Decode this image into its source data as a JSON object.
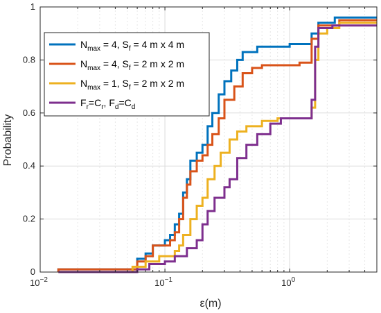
{
  "chart_data": {
    "type": "line",
    "step": true,
    "xscale": "log",
    "xlim": [
      0.01,
      5
    ],
    "ylim": [
      0,
      1
    ],
    "xlabel": "ε(m)",
    "ylabel": "Probability",
    "x_ticks": [
      {
        "value": 0.01,
        "base": "10",
        "exp": "−2"
      },
      {
        "value": 0.1,
        "base": "10",
        "exp": "−1"
      },
      {
        "value": 1,
        "base": "10",
        "exp": "0"
      }
    ],
    "y_ticks": [
      0,
      0.2,
      0.4,
      0.6,
      0.8,
      1
    ],
    "y_tick_labels": [
      "0",
      "0.2",
      "0.4",
      "0.6",
      "0.8",
      "1"
    ],
    "grid": true,
    "legend": "top-left",
    "series": [
      {
        "color": "#0072BD",
        "legend_parts": [
          {
            "t": "N"
          },
          {
            "t": "max",
            "sub": true
          },
          {
            "t": " = 4, S"
          },
          {
            "t": "f",
            "sub": true
          },
          {
            "t": " = 4 m x 4 m"
          }
        ],
        "points": [
          [
            0.014,
            0.0
          ],
          [
            0.014,
            0.01
          ],
          [
            0.06,
            0.01
          ],
          [
            0.06,
            0.05
          ],
          [
            0.07,
            0.05
          ],
          [
            0.07,
            0.07
          ],
          [
            0.08,
            0.07
          ],
          [
            0.08,
            0.1
          ],
          [
            0.1,
            0.1
          ],
          [
            0.1,
            0.12
          ],
          [
            0.11,
            0.12
          ],
          [
            0.11,
            0.14
          ],
          [
            0.12,
            0.14
          ],
          [
            0.12,
            0.18
          ],
          [
            0.13,
            0.18
          ],
          [
            0.13,
            0.22
          ],
          [
            0.14,
            0.22
          ],
          [
            0.14,
            0.3
          ],
          [
            0.15,
            0.3
          ],
          [
            0.15,
            0.35
          ],
          [
            0.16,
            0.35
          ],
          [
            0.16,
            0.42
          ],
          [
            0.18,
            0.42
          ],
          [
            0.18,
            0.45
          ],
          [
            0.2,
            0.45
          ],
          [
            0.2,
            0.48
          ],
          [
            0.22,
            0.48
          ],
          [
            0.22,
            0.55
          ],
          [
            0.24,
            0.55
          ],
          [
            0.24,
            0.6
          ],
          [
            0.27,
            0.6
          ],
          [
            0.27,
            0.67
          ],
          [
            0.3,
            0.67
          ],
          [
            0.3,
            0.72
          ],
          [
            0.34,
            0.72
          ],
          [
            0.34,
            0.76
          ],
          [
            0.38,
            0.76
          ],
          [
            0.38,
            0.8
          ],
          [
            0.42,
            0.8
          ],
          [
            0.42,
            0.83
          ],
          [
            0.55,
            0.83
          ],
          [
            0.55,
            0.85
          ],
          [
            1.0,
            0.85
          ],
          [
            1.0,
            0.86
          ],
          [
            1.5,
            0.86
          ],
          [
            1.5,
            0.9
          ],
          [
            1.7,
            0.9
          ],
          [
            1.7,
            0.94
          ],
          [
            2.3,
            0.94
          ],
          [
            2.3,
            0.96
          ],
          [
            5.0,
            0.96
          ]
        ]
      },
      {
        "color": "#D95319",
        "legend_parts": [
          {
            "t": "N"
          },
          {
            "t": "max",
            "sub": true
          },
          {
            "t": " = 4, S"
          },
          {
            "t": "f",
            "sub": true
          },
          {
            "t": " = 2 m x 2 m"
          }
        ],
        "points": [
          [
            0.014,
            0.0
          ],
          [
            0.014,
            0.01
          ],
          [
            0.06,
            0.01
          ],
          [
            0.06,
            0.04
          ],
          [
            0.07,
            0.04
          ],
          [
            0.07,
            0.06
          ],
          [
            0.08,
            0.06
          ],
          [
            0.08,
            0.1
          ],
          [
            0.11,
            0.1
          ],
          [
            0.11,
            0.12
          ],
          [
            0.12,
            0.12
          ],
          [
            0.12,
            0.15
          ],
          [
            0.13,
            0.15
          ],
          [
            0.13,
            0.2
          ],
          [
            0.14,
            0.2
          ],
          [
            0.14,
            0.28
          ],
          [
            0.15,
            0.28
          ],
          [
            0.15,
            0.33
          ],
          [
            0.16,
            0.33
          ],
          [
            0.16,
            0.38
          ],
          [
            0.18,
            0.38
          ],
          [
            0.18,
            0.42
          ],
          [
            0.2,
            0.42
          ],
          [
            0.2,
            0.44
          ],
          [
            0.22,
            0.44
          ],
          [
            0.22,
            0.48
          ],
          [
            0.24,
            0.48
          ],
          [
            0.24,
            0.52
          ],
          [
            0.27,
            0.52
          ],
          [
            0.27,
            0.58
          ],
          [
            0.3,
            0.58
          ],
          [
            0.3,
            0.65
          ],
          [
            0.36,
            0.65
          ],
          [
            0.36,
            0.7
          ],
          [
            0.42,
            0.7
          ],
          [
            0.42,
            0.75
          ],
          [
            0.5,
            0.75
          ],
          [
            0.5,
            0.77
          ],
          [
            0.6,
            0.77
          ],
          [
            0.6,
            0.78
          ],
          [
            1.2,
            0.78
          ],
          [
            1.2,
            0.79
          ],
          [
            1.5,
            0.79
          ],
          [
            1.5,
            0.88
          ],
          [
            1.7,
            0.88
          ],
          [
            1.7,
            0.93
          ],
          [
            2.5,
            0.93
          ],
          [
            2.5,
            0.95
          ],
          [
            5.0,
            0.95
          ]
        ]
      },
      {
        "color": "#EDB120",
        "legend_parts": [
          {
            "t": "N"
          },
          {
            "t": "max",
            "sub": true
          },
          {
            "t": " = 1, S"
          },
          {
            "t": "f",
            "sub": true
          },
          {
            "t": " = 2 m x 2 m"
          }
        ],
        "points": [
          [
            0.014,
            0.0
          ],
          [
            0.055,
            0.0
          ],
          [
            0.055,
            0.02
          ],
          [
            0.07,
            0.02
          ],
          [
            0.07,
            0.04
          ],
          [
            0.09,
            0.04
          ],
          [
            0.09,
            0.06
          ],
          [
            0.12,
            0.06
          ],
          [
            0.12,
            0.08
          ],
          [
            0.13,
            0.08
          ],
          [
            0.13,
            0.1
          ],
          [
            0.14,
            0.1
          ],
          [
            0.14,
            0.14
          ],
          [
            0.16,
            0.14
          ],
          [
            0.16,
            0.2
          ],
          [
            0.18,
            0.2
          ],
          [
            0.18,
            0.25
          ],
          [
            0.2,
            0.25
          ],
          [
            0.2,
            0.28
          ],
          [
            0.22,
            0.28
          ],
          [
            0.22,
            0.35
          ],
          [
            0.25,
            0.35
          ],
          [
            0.25,
            0.4
          ],
          [
            0.28,
            0.4
          ],
          [
            0.28,
            0.45
          ],
          [
            0.33,
            0.45
          ],
          [
            0.33,
            0.5
          ],
          [
            0.38,
            0.5
          ],
          [
            0.38,
            0.53
          ],
          [
            0.45,
            0.53
          ],
          [
            0.45,
            0.55
          ],
          [
            0.6,
            0.55
          ],
          [
            0.6,
            0.57
          ],
          [
            0.8,
            0.57
          ],
          [
            0.8,
            0.58
          ],
          [
            1.5,
            0.58
          ],
          [
            1.5,
            0.62
          ],
          [
            1.6,
            0.62
          ],
          [
            1.6,
            0.8
          ],
          [
            1.7,
            0.8
          ],
          [
            1.7,
            0.9
          ],
          [
            2.0,
            0.9
          ],
          [
            2.0,
            0.92
          ],
          [
            2.5,
            0.92
          ],
          [
            2.5,
            0.94
          ],
          [
            5.0,
            0.94
          ]
        ]
      },
      {
        "color": "#7E2F8E",
        "legend_parts": [
          {
            "t": "F"
          },
          {
            "t": "r",
            "sub": true
          },
          {
            "t": "=C"
          },
          {
            "t": "r",
            "sub": true
          },
          {
            "t": ", F"
          },
          {
            "t": "d",
            "sub": true
          },
          {
            "t": "=C"
          },
          {
            "t": "d",
            "sub": true
          }
        ],
        "points": [
          [
            0.014,
            0.0
          ],
          [
            0.06,
            0.0
          ],
          [
            0.06,
            0.01
          ],
          [
            0.075,
            0.01
          ],
          [
            0.075,
            0.03
          ],
          [
            0.1,
            0.03
          ],
          [
            0.1,
            0.04
          ],
          [
            0.12,
            0.04
          ],
          [
            0.12,
            0.06
          ],
          [
            0.15,
            0.06
          ],
          [
            0.15,
            0.09
          ],
          [
            0.18,
            0.09
          ],
          [
            0.18,
            0.12
          ],
          [
            0.2,
            0.12
          ],
          [
            0.2,
            0.18
          ],
          [
            0.22,
            0.18
          ],
          [
            0.22,
            0.23
          ],
          [
            0.25,
            0.23
          ],
          [
            0.25,
            0.28
          ],
          [
            0.3,
            0.28
          ],
          [
            0.3,
            0.32
          ],
          [
            0.33,
            0.32
          ],
          [
            0.33,
            0.35
          ],
          [
            0.38,
            0.35
          ],
          [
            0.38,
            0.43
          ],
          [
            0.45,
            0.43
          ],
          [
            0.45,
            0.48
          ],
          [
            0.55,
            0.48
          ],
          [
            0.55,
            0.52
          ],
          [
            0.7,
            0.52
          ],
          [
            0.7,
            0.56
          ],
          [
            0.85,
            0.56
          ],
          [
            0.85,
            0.58
          ],
          [
            1.5,
            0.58
          ],
          [
            1.5,
            0.65
          ],
          [
            1.6,
            0.65
          ],
          [
            1.6,
            0.85
          ],
          [
            1.7,
            0.85
          ],
          [
            1.7,
            0.92
          ],
          [
            2.2,
            0.92
          ],
          [
            2.2,
            0.93
          ],
          [
            5.0,
            0.93
          ]
        ]
      }
    ]
  }
}
